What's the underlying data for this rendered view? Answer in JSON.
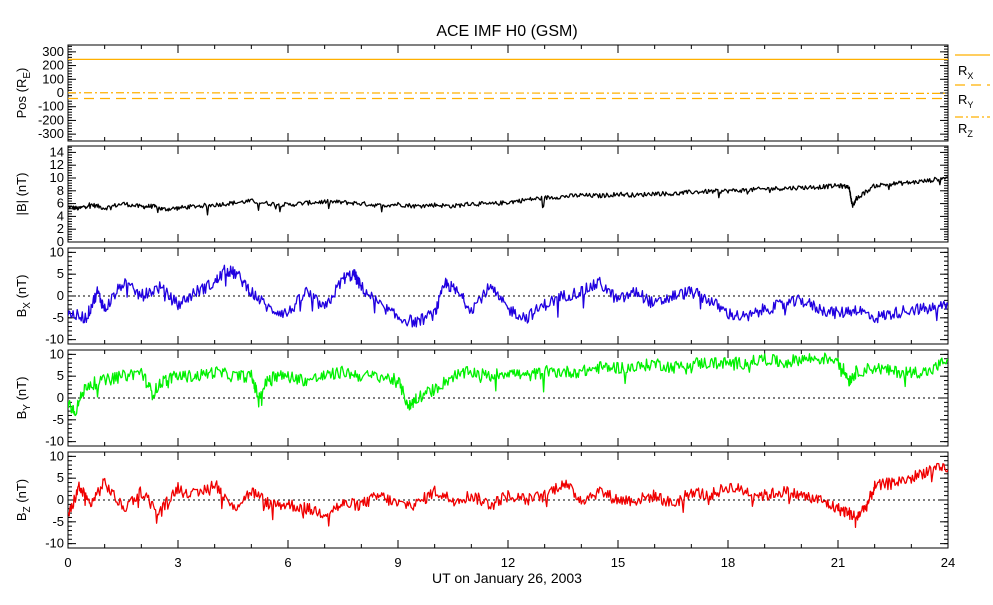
{
  "chart_data": {
    "title": "ACE IMF H0 (GSM)",
    "type": "line",
    "xlabel": "UT on January 26, 2003",
    "x_unit": "hours",
    "xlim": [
      0,
      24
    ],
    "xticks": [
      "0",
      "3",
      "6",
      "9",
      "12",
      "15",
      "18",
      "21",
      "24"
    ],
    "panels": [
      {
        "id": "pos",
        "ylabel_main": "Pos (R",
        "ylabel_sub": "E",
        "ylabel_tail": ")",
        "ylim": [
          -350,
          350
        ],
        "yticks": [
          300,
          200,
          100,
          0,
          -100,
          -200,
          -300
        ],
        "legend": [
          {
            "main": "R",
            "sub": "X"
          },
          {
            "main": "R",
            "sub": "Y"
          },
          {
            "main": "R",
            "sub": "Z"
          }
        ],
        "series": [
          {
            "color": "#FFB000",
            "dash": "",
            "x": [
              0,
              24
            ],
            "y": [
              245,
              245
            ]
          },
          {
            "color": "#FFB000",
            "dash": "10 6",
            "x": [
              0,
              24
            ],
            "y": [
              -40,
              -40
            ]
          },
          {
            "color": "#FFB000",
            "dash": "8 3 2 3",
            "x": [
              0,
              24
            ],
            "y": [
              2,
              -3
            ]
          }
        ]
      },
      {
        "id": "bt",
        "ylabel_main": "|B| (nT)",
        "ylim": [
          0,
          15
        ],
        "yticks": [
          14,
          12,
          10,
          8,
          6,
          4,
          2,
          0
        ],
        "series": [
          {
            "color": "#000000",
            "x": [
              0,
              0.3,
              0.6,
              1,
              1.5,
              2,
              2.3,
              2.6,
              3,
              3.5,
              4,
              4.5,
              5,
              5.5,
              6,
              6.5,
              7,
              7.5,
              8,
              8.5,
              9,
              9.5,
              10,
              10.5,
              11,
              11.5,
              12,
              12.5,
              13,
              13.5,
              14,
              14.5,
              15,
              15.5,
              16,
              16.5,
              17,
              17.5,
              18,
              18.5,
              19,
              19.5,
              20,
              20.5,
              21,
              21.3,
              21.4,
              21.5,
              22,
              22.5,
              23,
              23.5,
              24
            ],
            "y": [
              5.5,
              5.2,
              5.9,
              5.3,
              6.0,
              5.5,
              5.6,
              5.1,
              5.3,
              5.6,
              5.8,
              6.1,
              6.4,
              6.0,
              5.8,
              6.1,
              6.3,
              6.2,
              6.0,
              5.7,
              5.9,
              5.6,
              5.8,
              5.6,
              6.0,
              5.9,
              6.2,
              6.6,
              6.9,
              7.1,
              7.3,
              7.2,
              7.5,
              7.3,
              7.6,
              7.5,
              7.8,
              7.9,
              8.0,
              8.1,
              8.3,
              8.4,
              8.5,
              8.6,
              8.8,
              8.6,
              5.5,
              6.8,
              8.8,
              9.1,
              9.3,
              9.6,
              10.2
            ]
          }
        ]
      },
      {
        "id": "bx",
        "ylabel_main": "B",
        "ylabel_sub": "X",
        "ylabel_tail": " (nT)",
        "ylim": [
          -11,
          11
        ],
        "yticks": [
          10,
          5,
          0,
          -5,
          -10
        ],
        "zero_line": true,
        "series": [
          {
            "color": "#2000E0",
            "x": [
              0,
              0.5,
              0.8,
              1,
              1.5,
              2,
              2.5,
              3,
              3.5,
              4,
              4.3,
              4.6,
              5,
              5.5,
              6,
              6.5,
              7,
              7.5,
              7.8,
              8,
              8.5,
              9,
              9.5,
              10,
              10.3,
              10.6,
              11,
              11.5,
              12,
              12.5,
              13,
              13.5,
              14,
              14.5,
              15,
              15.5,
              16,
              16.5,
              17,
              17.5,
              18,
              18.5,
              19,
              19.5,
              20,
              20.5,
              21,
              21.5,
              22,
              22.5,
              23,
              23.5,
              24
            ],
            "y": [
              -4,
              -5,
              1,
              -3,
              3,
              0,
              2,
              -2,
              1,
              3,
              6,
              5,
              1,
              -3,
              -4,
              1,
              -3,
              4,
              5,
              2,
              -2,
              -5,
              -6,
              -4,
              3,
              1,
              -3,
              2,
              -3,
              -5,
              -2,
              0,
              1,
              3,
              -1,
              1,
              -2,
              0,
              1,
              -1,
              -4,
              -5,
              -3,
              -2,
              -1,
              -3,
              -4,
              -3,
              -5,
              -4,
              -3,
              -3,
              -2
            ]
          }
        ]
      },
      {
        "id": "by",
        "ylabel_main": "B",
        "ylabel_sub": "Y",
        "ylabel_tail": " (nT)",
        "ylim": [
          -11,
          11
        ],
        "yticks": [
          10,
          5,
          0,
          -5,
          -10
        ],
        "zero_line": true,
        "series": [
          {
            "color": "#00F000",
            "x": [
              0,
              0.2,
              0.5,
              1,
              1.5,
              2,
              2.3,
              2.6,
              3,
              3.5,
              4,
              4.5,
              5,
              5.2,
              5.5,
              6,
              6.5,
              7,
              7.5,
              8,
              8.5,
              9,
              9.3,
              9.5,
              10,
              10.5,
              11,
              11.5,
              12,
              12.5,
              13,
              13.5,
              14,
              14.5,
              15,
              15.5,
              16,
              16.5,
              17,
              17.5,
              18,
              18.5,
              19,
              19.5,
              20,
              20.5,
              21,
              21.3,
              21.5,
              22,
              22.5,
              23,
              23.5,
              24
            ],
            "y": [
              -1,
              -3,
              3,
              4,
              5,
              6,
              1,
              4,
              5,
              5,
              6,
              5,
              5,
              0,
              5,
              5,
              4,
              5,
              6,
              5,
              5,
              4,
              -2,
              0,
              2,
              5,
              6,
              5,
              6,
              5,
              6,
              6,
              6,
              7,
              7,
              7,
              8,
              7,
              8,
              8,
              8,
              8,
              9,
              8,
              9,
              9,
              9,
              4,
              6,
              7,
              6,
              6,
              6,
              9
            ]
          }
        ]
      },
      {
        "id": "bz",
        "ylabel_main": "B",
        "ylabel_sub": "Z",
        "ylabel_tail": " (nT)",
        "ylim": [
          -11,
          11
        ],
        "yticks": [
          10,
          5,
          0,
          -5,
          -10
        ],
        "zero_line": true,
        "series": [
          {
            "color": "#F00000",
            "x": [
              0,
              0.3,
              0.6,
              1,
              1.5,
              2,
              2.5,
              3,
              3.5,
              4,
              4.5,
              5,
              5.5,
              6,
              6.5,
              7,
              7.5,
              8,
              8.5,
              9,
              9.5,
              10,
              10.5,
              11,
              11.5,
              12,
              12.5,
              13,
              13.5,
              14,
              14.5,
              15,
              15.5,
              16,
              16.5,
              17,
              17.5,
              18,
              18.5,
              19,
              19.5,
              20,
              20.5,
              21,
              21.3,
              21.5,
              21.8,
              22,
              22.5,
              23,
              23.5,
              24
            ],
            "y": [
              -4,
              3,
              -1,
              4,
              -2,
              2,
              -3,
              3,
              1,
              4,
              -2,
              2,
              -1,
              -1,
              -2,
              -3,
              -1,
              -1,
              1,
              -1,
              -1,
              2,
              0,
              1,
              -1,
              1,
              0,
              1,
              4,
              0,
              2,
              0,
              0,
              1,
              -1,
              2,
              1,
              3,
              2,
              1,
              2,
              1,
              0,
              -2,
              -3,
              -4,
              -1,
              3,
              4,
              5,
              7,
              7
            ]
          }
        ]
      }
    ]
  }
}
